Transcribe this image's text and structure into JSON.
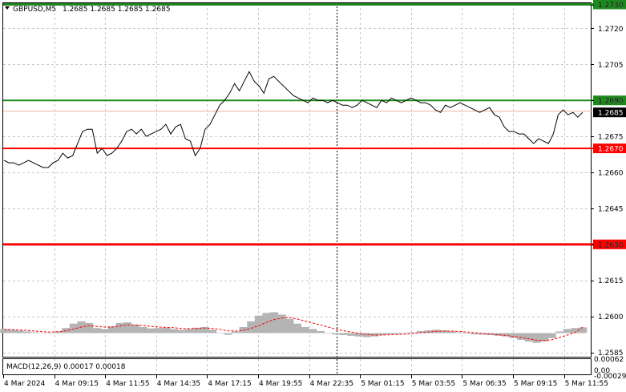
{
  "header": {
    "symbol_label": "GBPUSD,M5",
    "ohlc": "1.2685 1.2685 1.2685 1.2685",
    "dropdown_icon": "triangle-down-icon"
  },
  "colors": {
    "background": "#ffffff",
    "grid": "#c8c8c8",
    "price_line": "#000000",
    "green_level": "#1e8a1e",
    "red_level": "#ff0000",
    "macd_hist": "#b4b4b4",
    "macd_signal": "#ff0000",
    "current_label_bg": "#000000",
    "bid_line": "#f0b4a0"
  },
  "chart_data": [
    {
      "type": "line",
      "title": "GBPUSD,M5",
      "ylim": [
        1.2575,
        1.273
      ],
      "y_ticks": [
        "1.2730",
        "1.2720",
        "1.2705",
        "1.2690",
        "1.2675",
        "1.2660",
        "1.2645",
        "1.2630",
        "1.2615",
        "1.2600",
        "1.2585"
      ],
      "x_ticks": [
        "4 Mar 2024",
        "4 Mar 09:15",
        "4 Mar 11:55",
        "4 Mar 14:35",
        "4 Mar 17:15",
        "4 Mar 19:55",
        "4 Mar 22:35",
        "5 Mar 01:15",
        "5 Mar 03:55",
        "5 Mar 06:35",
        "5 Mar 09:15",
        "5 Mar 11:55"
      ],
      "current_price": "1.2685",
      "levels": [
        {
          "value": 1.273,
          "label": "1.2730",
          "color": "green"
        },
        {
          "value": 1.269,
          "label": "1.2690",
          "color": "green"
        },
        {
          "value": 1.267,
          "label": "1.2670",
          "color": "red"
        },
        {
          "value": 1.263,
          "label": "1.2630",
          "color": "red"
        }
      ],
      "series": [
        {
          "values": [
            1.2665,
            1.2664,
            1.2664,
            1.2663,
            1.2664,
            1.2665,
            1.2664,
            1.2663,
            1.2662,
            1.2662,
            1.2664,
            1.2665,
            1.2668,
            1.2666,
            1.2667,
            1.2672,
            1.2677,
            1.2678,
            1.2678,
            1.2668,
            1.267,
            1.2667,
            1.2668,
            1.267,
            1.2673,
            1.2677,
            1.2678,
            1.2676,
            1.2678,
            1.2675,
            1.2676,
            1.2677,
            1.2678,
            1.268,
            1.2676,
            1.2679,
            1.268,
            1.2674,
            1.2673,
            1.2667,
            1.267,
            1.2678,
            1.268,
            1.2684,
            1.2688,
            1.269,
            1.2693,
            1.2697,
            1.2694,
            1.2698,
            1.2702,
            1.2698,
            1.2696,
            1.2693,
            1.2699,
            1.27,
            1.2698,
            1.2696,
            1.2694,
            1.2692,
            1.2691,
            1.269,
            1.2689,
            1.2691,
            1.269,
            1.269,
            1.2689,
            1.269,
            1.2689,
            1.2688,
            1.2688,
            1.2687,
            1.2688,
            1.269,
            1.2689,
            1.2688,
            1.2687,
            1.269,
            1.2689,
            1.2691,
            1.269,
            1.2689,
            1.269,
            1.2691,
            1.269,
            1.2689,
            1.2689,
            1.2688,
            1.2686,
            1.2685,
            1.2688,
            1.2687,
            1.2688,
            1.2689,
            1.2688,
            1.2687,
            1.2686,
            1.2685,
            1.2686,
            1.2687,
            1.2684,
            1.2683,
            1.2679,
            1.2677,
            1.2677,
            1.2676,
            1.2676,
            1.2674,
            1.2672,
            1.2674,
            1.2673,
            1.2672,
            1.2676,
            1.2684,
            1.2686,
            1.2684,
            1.2685,
            1.2683,
            1.2685
          ]
        }
      ]
    },
    {
      "type": "bar",
      "title": "MACD(12,26,9) 0.00017 0.00018",
      "ylim": [
        -0.00029,
        0.00062
      ],
      "y_ticks": [
        "0.00062",
        "0.00",
        "-0.00029"
      ],
      "series": [
        {
          "name": "MACD",
          "values": [
            0.00012,
            0.0001,
            8e-05,
            5e-05,
            2e-05,
            0.0,
            1e-05,
            5e-05,
            0.00015,
            0.00028,
            0.00035,
            0.0003,
            0.00015,
            0.00012,
            0.0002,
            0.0003,
            0.00032,
            0.00025,
            0.00018,
            0.00014,
            0.00015,
            0.00016,
            0.00012,
            0.0001,
            0.00012,
            0.00016,
            0.00018,
            0.0001,
            0.0,
            -5e-05,
            5e-05,
            0.00018,
            0.00035,
            0.00052,
            0.0006,
            0.00062,
            0.00055,
            0.00042,
            0.00028,
            0.00018,
            0.00012,
            6e-05,
            0.0,
            -4e-05,
            -6e-05,
            -8e-05,
            -0.0001,
            -0.00012,
            -0.0001,
            -6e-05,
            -4e-05,
            -3e-05,
            -2e-05,
            2e-05,
            6e-05,
            8e-05,
            0.0001,
            8e-05,
            5e-05,
            2e-05,
            -2e-05,
            -4e-05,
            -5e-05,
            -6e-05,
            -8e-05,
            -0.0001,
            -0.00015,
            -0.0002,
            -0.00025,
            -0.00029,
            -0.00025,
            -0.00015,
            5e-05,
            0.00012,
            0.00015,
            0.00017
          ]
        },
        {
          "name": "Signal",
          "values": [
            0.0001,
            0.0001,
            9e-05,
            8e-05,
            6e-05,
            4e-05,
            3e-05,
            4e-05,
            7e-05,
            0.00012,
            0.00018,
            0.00022,
            0.0002,
            0.00018,
            0.00018,
            0.00021,
            0.00024,
            0.00024,
            0.00023,
            0.0002,
            0.00018,
            0.00017,
            0.00016,
            0.00014,
            0.00013,
            0.00014,
            0.00015,
            0.00014,
            0.00011,
            7e-05,
            6e-05,
            8e-05,
            0.00014,
            0.00022,
            0.00032,
            0.0004,
            0.00045,
            0.00046,
            0.00042,
            0.00036,
            0.0003,
            0.00024,
            0.00018,
            0.00012,
            7e-05,
            3e-05,
            -1e-05,
            -4e-05,
            -6e-05,
            -6e-05,
            -5e-05,
            -4e-05,
            -3e-05,
            -1e-05,
            1e-05,
            3e-05,
            5e-05,
            6e-05,
            6e-05,
            5e-05,
            3e-05,
            1e-05,
            -1e-05,
            -3e-05,
            -5e-05,
            -7e-05,
            -0.0001,
            -0.00013,
            -0.00017,
            -0.00021,
            -0.00022,
            -0.0002,
            -0.00013,
            -6e-05,
            2e-05,
            0.00018
          ]
        }
      ]
    }
  ]
}
